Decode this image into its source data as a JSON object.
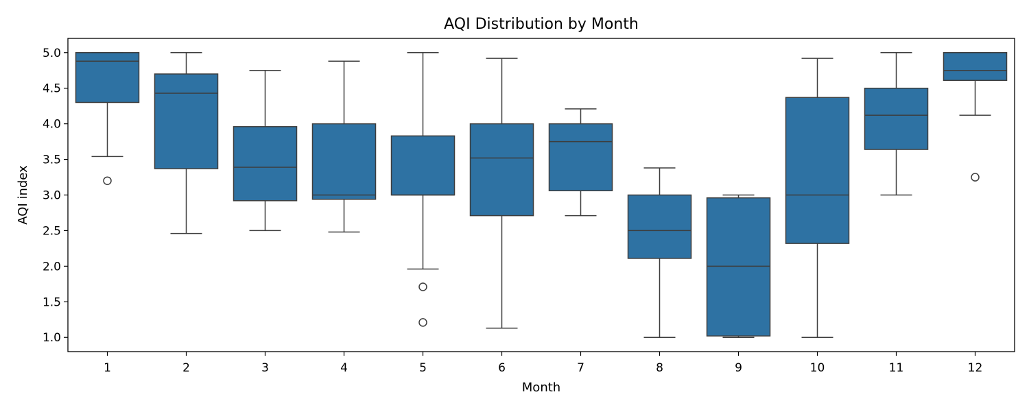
{
  "chart_data": {
    "type": "box",
    "title": "AQI Distribution by Month",
    "xlabel": "Month",
    "ylabel": "AQI index",
    "ylim": [
      0.8,
      5.2
    ],
    "yticks": [
      "1.0",
      "1.5",
      "2.0",
      "2.5",
      "3.0",
      "3.5",
      "4.0",
      "4.5",
      "5.0"
    ],
    "grid": false,
    "box_color": "#2e72a3",
    "line_color": "#3d3d3d",
    "categories": [
      "1",
      "2",
      "3",
      "4",
      "5",
      "6",
      "7",
      "8",
      "9",
      "10",
      "11",
      "12"
    ],
    "boxes": [
      {
        "month": "1",
        "whisker_low": 3.54,
        "q1": 4.3,
        "median": 4.88,
        "q3": 5.0,
        "whisker_high": 5.0,
        "outliers": [
          3.2
        ]
      },
      {
        "month": "2",
        "whisker_low": 2.46,
        "q1": 3.37,
        "median": 4.43,
        "q3": 4.7,
        "whisker_high": 5.0,
        "outliers": []
      },
      {
        "month": "3",
        "whisker_low": 2.5,
        "q1": 2.92,
        "median": 3.39,
        "q3": 3.96,
        "whisker_high": 4.75,
        "outliers": []
      },
      {
        "month": "4",
        "whisker_low": 2.48,
        "q1": 2.94,
        "median": 3.0,
        "q3": 4.0,
        "whisker_high": 4.88,
        "outliers": []
      },
      {
        "month": "5",
        "whisker_low": 1.96,
        "q1": 3.0,
        "median": 3.0,
        "q3": 3.83,
        "whisker_high": 5.0,
        "outliers": [
          1.71,
          1.21
        ]
      },
      {
        "month": "6",
        "whisker_low": 1.13,
        "q1": 2.71,
        "median": 3.52,
        "q3": 4.0,
        "whisker_high": 4.92,
        "outliers": []
      },
      {
        "month": "7",
        "whisker_low": 2.71,
        "q1": 3.06,
        "median": 3.75,
        "q3": 4.0,
        "whisker_high": 4.21,
        "outliers": []
      },
      {
        "month": "8",
        "whisker_low": 1.0,
        "q1": 2.11,
        "median": 2.5,
        "q3": 3.0,
        "whisker_high": 3.38,
        "outliers": []
      },
      {
        "month": "9",
        "whisker_low": 1.0,
        "q1": 1.02,
        "median": 2.0,
        "q3": 2.96,
        "whisker_high": 3.0,
        "outliers": []
      },
      {
        "month": "10",
        "whisker_low": 1.0,
        "q1": 2.32,
        "median": 3.0,
        "q3": 4.37,
        "whisker_high": 4.92,
        "outliers": []
      },
      {
        "month": "11",
        "whisker_low": 3.0,
        "q1": 3.64,
        "median": 4.12,
        "q3": 4.5,
        "whisker_high": 5.0,
        "outliers": []
      },
      {
        "month": "12",
        "whisker_low": 4.12,
        "q1": 4.61,
        "median": 4.75,
        "q3": 5.0,
        "whisker_high": 5.0,
        "outliers": [
          3.25
        ]
      }
    ]
  }
}
